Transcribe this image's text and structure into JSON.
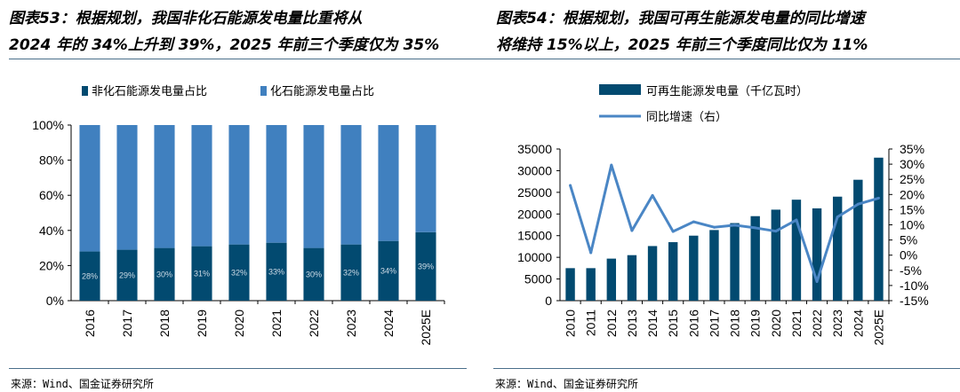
{
  "left": {
    "title_line1": "图表53：根据规划，我国非化石能源发电量比重将从",
    "title_line2": "2024 年的 34%上升到 39%，2025 年前三个季度仅为 35%",
    "source": "来源：Wind、国金证券研究所"
  },
  "right": {
    "title_line1": "图表54：根据规划，我国可再生能源发电量的同比增速",
    "title_line2": "将维持 15%以上，2025 年前三个季度同比仅为 11%",
    "source": "来源：Wind、国金证券研究所"
  },
  "chart_data": [
    {
      "type": "bar",
      "stacked": true,
      "categories": [
        "2016",
        "2017",
        "2018",
        "2019",
        "2020",
        "2021",
        "2022",
        "2023",
        "2024",
        "2025E"
      ],
      "series": [
        {
          "name": "非化石能源发电量占比",
          "values": [
            28,
            29,
            30,
            31,
            32,
            33,
            30,
            32,
            34,
            39
          ],
          "color": "#024a70",
          "data_labels": [
            "28%",
            "29%",
            "30%",
            "31%",
            "32%",
            "33%",
            "30%",
            "32%",
            "34%",
            "39%"
          ]
        },
        {
          "name": "化石能源发电量占比",
          "values": [
            72,
            71,
            70,
            69,
            68,
            67,
            70,
            68,
            66,
            61
          ],
          "color": "#4080bf"
        }
      ],
      "ylim": [
        0,
        100
      ],
      "yticks": [
        "0%",
        "20%",
        "40%",
        "60%",
        "80%",
        "100%"
      ],
      "legend": "top",
      "grid": false
    },
    {
      "type": "bar+line",
      "categories": [
        "2010",
        "2011",
        "2012",
        "2013",
        "2014",
        "2015",
        "2016",
        "2017",
        "2018",
        "2019",
        "2020",
        "2021",
        "2022",
        "2023",
        "2024",
        "2025E"
      ],
      "series": [
        {
          "name": "可再生能源发电量（千亿瓦时）",
          "type": "bar",
          "axis": "left",
          "color": "#024a70",
          "values": [
            7500,
            7500,
            9700,
            10500,
            12600,
            13500,
            15000,
            16300,
            17900,
            19500,
            21000,
            23300,
            21300,
            24000,
            27900,
            33000
          ]
        },
        {
          "name": "同比增速（右）",
          "type": "line",
          "axis": "right",
          "color": "#4a86c5",
          "values": [
            23.0,
            0.8,
            29.7,
            8.1,
            19.7,
            7.8,
            11.0,
            9.2,
            9.9,
            9.0,
            7.9,
            11.6,
            -8.7,
            12.6,
            16.8,
            18.8
          ]
        }
      ],
      "ylim_left": [
        0,
        35000
      ],
      "yticks_left": [
        "0",
        "5000",
        "10000",
        "15000",
        "20000",
        "25000",
        "30000",
        "35000"
      ],
      "ylim_right": [
        -15,
        35
      ],
      "yticks_right": [
        "-15%",
        "-10%",
        "-5%",
        "0%",
        "5%",
        "10%",
        "15%",
        "20%",
        "25%",
        "30%",
        "35%"
      ],
      "legend": "top",
      "grid": false
    }
  ]
}
